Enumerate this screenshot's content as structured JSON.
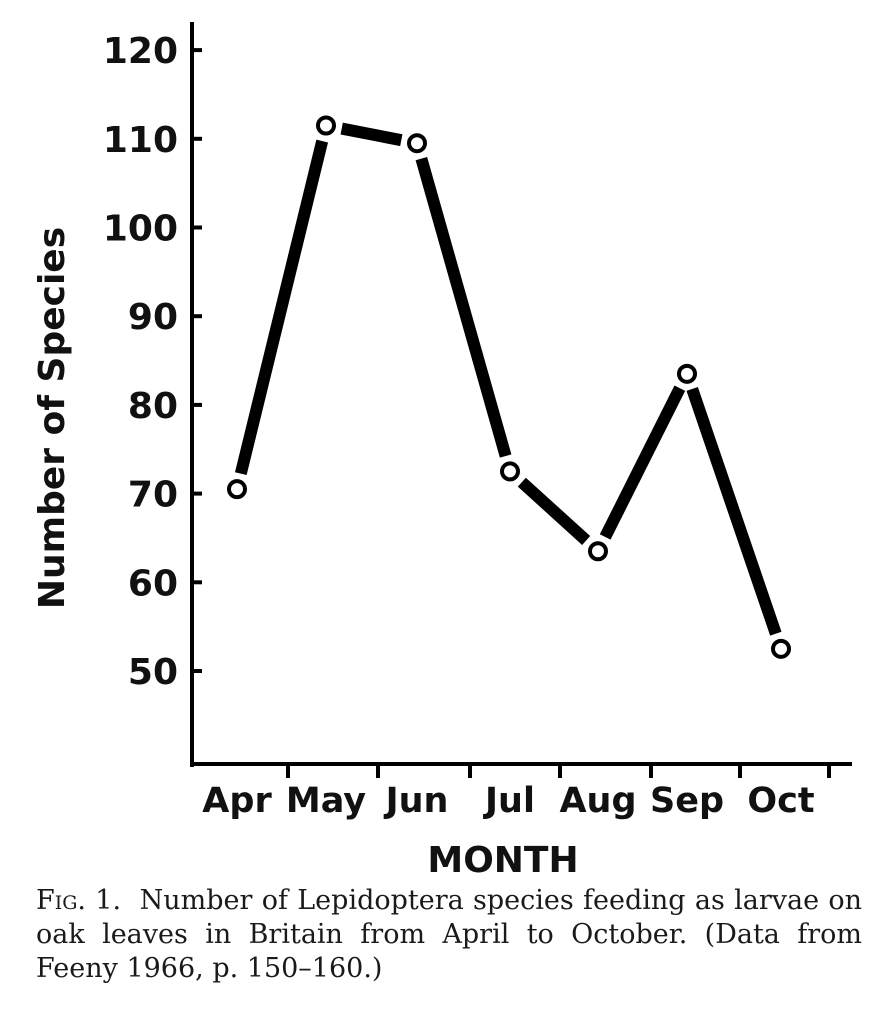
{
  "chart_data": {
    "type": "line",
    "xlabel": "MONTH",
    "ylabel": "Number of Species",
    "categories": [
      "Apr",
      "May",
      "Jun",
      "Jul",
      "Aug",
      "Sep",
      "Oct"
    ],
    "series": [
      {
        "values": [
          70.5,
          111.5,
          109.5,
          72.5,
          63.5,
          83.5,
          52.5
        ]
      }
    ],
    "yticks": [
      "50",
      "60",
      "70",
      "80",
      "90",
      "100",
      "110",
      "120"
    ],
    "ylim": [
      40,
      120
    ],
    "grid": false,
    "marker": "open-circle",
    "line_color": "#000000"
  },
  "caption": {
    "figure_number": "Fig. 1.",
    "text": "Number of Lepidoptera species feeding as larvae on oak leaves in Britain from April to October. (Data from Feeny 1966, p. 150–160.)"
  }
}
